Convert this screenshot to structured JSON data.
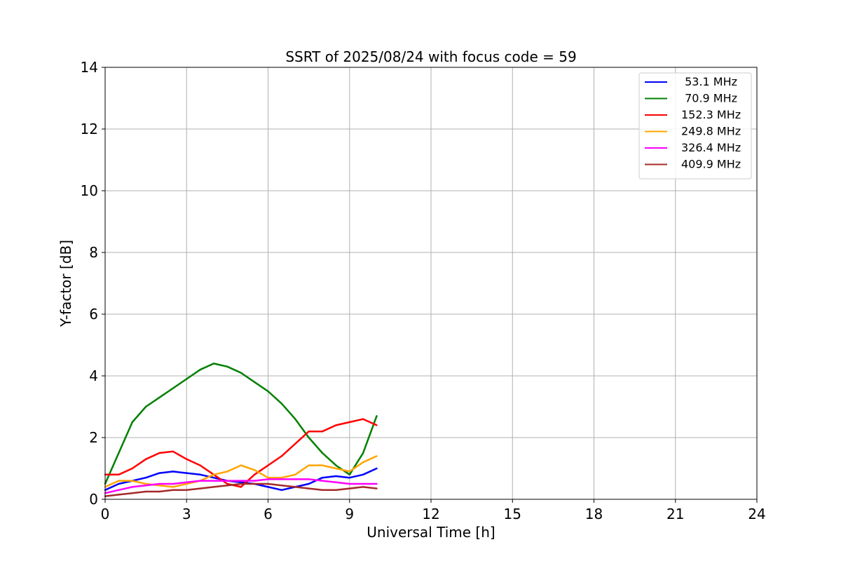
{
  "chart_data": {
    "type": "line",
    "title": "SSRT of 2025/08/24 with focus code = 59",
    "xlabel": "Universal Time [h]",
    "ylabel": "Y-factor [dB]",
    "xlim": [
      0,
      24
    ],
    "ylim": [
      0,
      14
    ],
    "xticks": [
      0,
      3,
      6,
      9,
      12,
      15,
      18,
      21,
      24
    ],
    "yticks": [
      0,
      2,
      4,
      6,
      8,
      10,
      12,
      14
    ],
    "grid": true,
    "legend_position": "top-right",
    "series": [
      {
        "name": " 53.1 MHz",
        "color": "#0000ff",
        "x": [
          0,
          0.5,
          1,
          1.5,
          2,
          2.5,
          3,
          3.5,
          4,
          4.5,
          5,
          5.5,
          6,
          6.5,
          7,
          7.5,
          8,
          8.5,
          9,
          9.5,
          10
        ],
        "y": [
          0.3,
          0.5,
          0.6,
          0.7,
          0.85,
          0.9,
          0.85,
          0.8,
          0.7,
          0.6,
          0.55,
          0.5,
          0.4,
          0.3,
          0.4,
          0.5,
          0.7,
          0.75,
          0.7,
          0.8,
          1.0
        ]
      },
      {
        "name": " 70.9 MHz",
        "color": "#008000",
        "x": [
          0,
          0.5,
          1,
          1.5,
          2,
          2.5,
          3,
          3.5,
          4,
          4.5,
          5,
          5.5,
          6,
          6.5,
          7,
          7.5,
          8,
          8.5,
          9,
          9.5,
          10
        ],
        "y": [
          0.5,
          1.5,
          2.5,
          3.0,
          3.3,
          3.6,
          3.9,
          4.2,
          4.4,
          4.3,
          4.1,
          3.8,
          3.5,
          3.1,
          2.6,
          2.0,
          1.5,
          1.1,
          0.8,
          1.5,
          2.7
        ]
      },
      {
        "name": "152.3 MHz",
        "color": "#ff0000",
        "x": [
          0,
          0.5,
          1,
          1.5,
          2,
          2.5,
          3,
          3.5,
          4,
          4.5,
          5,
          5.5,
          6,
          6.5,
          7,
          7.5,
          8,
          8.5,
          9,
          9.5,
          10
        ],
        "y": [
          0.8,
          0.8,
          1.0,
          1.3,
          1.5,
          1.55,
          1.3,
          1.1,
          0.8,
          0.5,
          0.4,
          0.8,
          1.1,
          1.4,
          1.8,
          2.2,
          2.2,
          2.4,
          2.5,
          2.6,
          2.4
        ]
      },
      {
        "name": "249.8 MHz",
        "color": "#ffa500",
        "x": [
          0,
          0.5,
          1,
          1.5,
          2,
          2.5,
          3,
          3.5,
          4,
          4.5,
          5,
          5.5,
          6,
          6.5,
          7,
          7.5,
          8,
          8.5,
          9,
          9.5,
          10
        ],
        "y": [
          0.4,
          0.6,
          0.6,
          0.5,
          0.45,
          0.4,
          0.5,
          0.6,
          0.8,
          0.9,
          1.1,
          0.95,
          0.7,
          0.7,
          0.8,
          1.1,
          1.1,
          1.0,
          0.9,
          1.2,
          1.4
        ]
      },
      {
        "name": "326.4 MHz",
        "color": "#ff00ff",
        "x": [
          0,
          0.5,
          1,
          1.5,
          2,
          2.5,
          3,
          3.5,
          4,
          4.5,
          5,
          5.5,
          6,
          6.5,
          7,
          7.5,
          8,
          8.5,
          9,
          9.5,
          10
        ],
        "y": [
          0.2,
          0.3,
          0.4,
          0.45,
          0.5,
          0.5,
          0.55,
          0.6,
          0.6,
          0.6,
          0.6,
          0.6,
          0.65,
          0.65,
          0.65,
          0.65,
          0.6,
          0.55,
          0.5,
          0.5,
          0.5
        ]
      },
      {
        "name": "409.9 MHz",
        "color": "#a52a2a",
        "x": [
          0,
          0.5,
          1,
          1.5,
          2,
          2.5,
          3,
          3.5,
          4,
          4.5,
          5,
          5.5,
          6,
          6.5,
          7,
          7.5,
          8,
          8.5,
          9,
          9.5,
          10
        ],
        "y": [
          0.1,
          0.15,
          0.2,
          0.25,
          0.25,
          0.3,
          0.3,
          0.35,
          0.4,
          0.45,
          0.5,
          0.5,
          0.5,
          0.45,
          0.4,
          0.35,
          0.3,
          0.3,
          0.35,
          0.4,
          0.35
        ]
      }
    ]
  }
}
